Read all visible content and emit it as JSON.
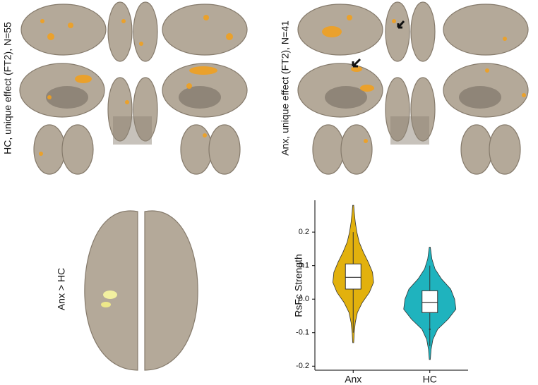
{
  "panels": {
    "hc_label": "HC, unique effect (FT2), N=55",
    "anx_label": "Anx, unique effect (FT2), N=41",
    "contrast_label": "Anx > HC"
  },
  "chart_data": {
    "type": "violin",
    "ylabel": "RsFc Strength",
    "categories": [
      "Anx",
      "HC"
    ],
    "ylim": [
      -0.212,
      0.295
    ],
    "yticks": [
      0.2,
      0.1,
      {
        "value": 0,
        "label": "0.0"
      },
      -0.1,
      -0.2
    ],
    "series": [
      {
        "name": "Anx",
        "color": "#e2b10d",
        "q1": 0.03,
        "median": 0.065,
        "q3": 0.105,
        "whisker_low": -0.1,
        "whisker_high": 0.2,
        "outliers": [],
        "kde": {
          "y": [
            -0.13,
            -0.1,
            -0.07,
            -0.04,
            -0.01,
            0.02,
            0.05,
            0.08,
            0.11,
            0.14,
            0.17,
            0.2,
            0.23,
            0.26,
            0.28
          ],
          "width": [
            0.02,
            0.04,
            0.08,
            0.16,
            0.35,
            0.62,
            0.78,
            0.74,
            0.58,
            0.39,
            0.23,
            0.14,
            0.08,
            0.04,
            0.02
          ]
        }
      },
      {
        "name": "HC",
        "color": "#1fb3be",
        "q1": -0.04,
        "median": -0.01,
        "q3": 0.025,
        "whisker_low": -0.14,
        "whisker_high": 0.1,
        "outliers": [
          -0.09
        ],
        "kde": {
          "y": [
            -0.18,
            -0.15,
            -0.12,
            -0.09,
            -0.06,
            -0.03,
            0,
            0.03,
            0.06,
            0.09,
            0.12,
            0.155
          ],
          "width": [
            0.02,
            0.05,
            0.12,
            0.3,
            0.7,
            1,
            0.95,
            0.8,
            0.45,
            0.2,
            0.08,
            0.02
          ]
        }
      }
    ]
  }
}
